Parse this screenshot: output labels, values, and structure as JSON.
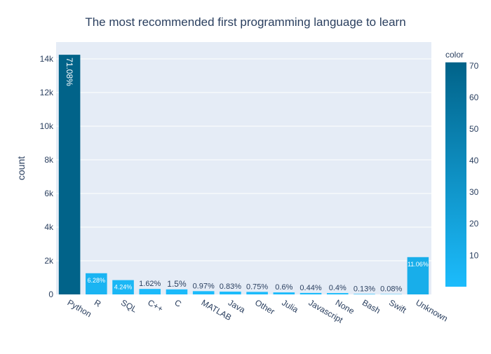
{
  "chart_data": {
    "type": "bar",
    "title": "The most recommended first programming language to learn",
    "xlabel": "",
    "ylabel": "count",
    "ylim": [
      0,
      15000
    ],
    "yticks": [
      0,
      2000,
      4000,
      6000,
      8000,
      10000,
      12000,
      14000
    ],
    "ytick_labels": [
      "0",
      "2k",
      "4k",
      "6k",
      "8k",
      "10k",
      "12k",
      "14k"
    ],
    "grid": true,
    "categories": [
      "Python",
      "R",
      "SQL",
      "C++",
      "C",
      "MATLAB",
      "Java",
      "Other",
      "Julia",
      "Javascript",
      "None",
      "Bash",
      "Swift",
      "Unknown"
    ],
    "values": [
      14245,
      1259,
      850,
      325,
      300,
      194,
      166,
      150,
      120,
      88,
      80,
      26,
      16,
      2217
    ],
    "percent_labels": [
      "71.08%",
      "6.28%",
      "4.24%",
      "1.62%",
      "1.5%",
      "0.97%",
      "0.83%",
      "0.75%",
      "0.6%",
      "0.44%",
      "0.4%",
      "0.13%",
      "0.08%",
      "11.06%"
    ],
    "color_values": [
      71.08,
      6.28,
      4.24,
      1.62,
      1.5,
      0.97,
      0.83,
      0.75,
      0.6,
      0.44,
      0.4,
      0.13,
      0.08,
      11.06
    ],
    "colorbar": {
      "title": "color",
      "range": [
        0.08,
        71.08
      ],
      "ticks": [
        10,
        20,
        30,
        40,
        50,
        60,
        70
      ],
      "colors": [
        "#1cbcfc",
        "#016389"
      ]
    },
    "background_color": "#e5ecf6",
    "text_color": "#2a3f5f"
  }
}
